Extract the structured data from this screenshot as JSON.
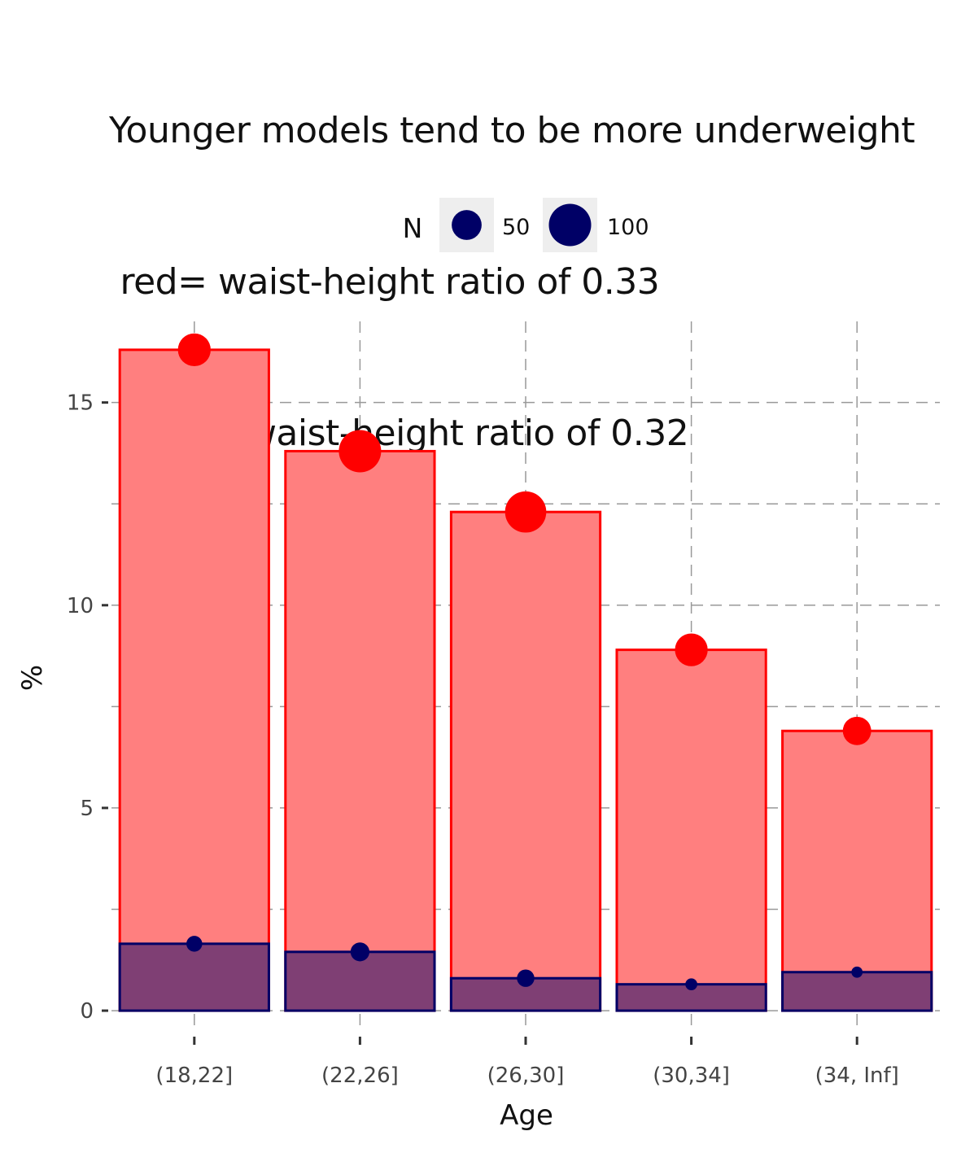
{
  "title_lines": [
    "Younger models tend to be more underweight",
    " red= waist-height ratio of 0.33",
    " blue = waist-height ratio of 0.32"
  ],
  "colors": {
    "red_fill": "#ff7f7f",
    "red_stroke": "#ff0000",
    "red_point": "#ff0000",
    "blue_fill": "#7f3f74",
    "blue_stroke": "#000066",
    "blue_point": "#000066",
    "grid": "#999999",
    "legend_key_bg": "#eeeeee"
  },
  "chart_data": {
    "type": "bar",
    "xlabel": "Age",
    "ylabel": "%",
    "categories": [
      "(18,22]",
      "(22,26]",
      "(26,30]",
      "(30,34]",
      "(34, Inf]"
    ],
    "ylim": [
      -0.4,
      17.0
    ],
    "yticks": [
      0,
      5,
      10,
      15
    ],
    "grid": true,
    "grid_style": "dashed",
    "legend": {
      "title": "N",
      "placement": "top",
      "entries": [
        {
          "label": "50",
          "n": 50
        },
        {
          "label": "100",
          "n": 100
        }
      ]
    },
    "series": [
      {
        "color": "red",
        "values": [
          16.3,
          13.8,
          12.3,
          8.9,
          6.9
        ],
        "n": [
          60,
          100,
          95,
          60,
          45
        ]
      },
      {
        "color": "blue",
        "values": [
          1.65,
          1.45,
          0.8,
          0.65,
          0.95
        ],
        "n": [
          14,
          20,
          17,
          8,
          7
        ]
      }
    ]
  }
}
